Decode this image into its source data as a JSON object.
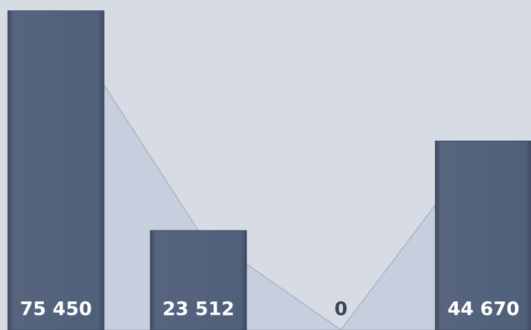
{
  "chart_data": {
    "type": "bar",
    "values": [
      75450,
      23512,
      0,
      44670
    ],
    "value_labels": [
      "75 450",
      "23 512",
      "0",
      "44 670"
    ],
    "color": "#4f5d77",
    "area_color": "#c7cfdf",
    "ylim": [
      0,
      78000
    ]
  }
}
